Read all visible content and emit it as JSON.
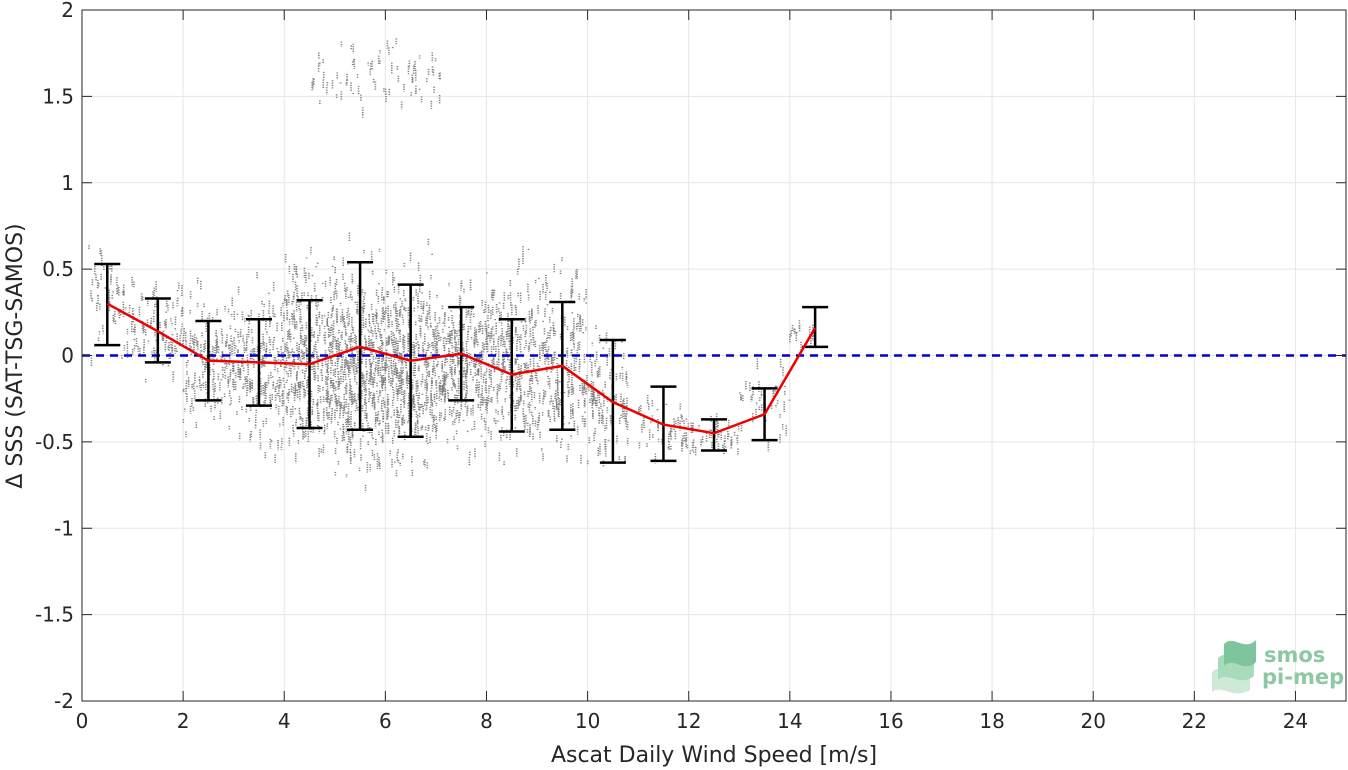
{
  "chart_data": {
    "type": "scatter",
    "xlabel": "Ascat Daily Wind Speed [m/s]",
    "ylabel": "Δ SSS (SAT-TSG-SAMOS)",
    "xlim": [
      0,
      25
    ],
    "ylim": [
      -2,
      2
    ],
    "xticks": [
      0,
      2,
      4,
      6,
      8,
      10,
      12,
      14,
      16,
      18,
      20,
      22,
      24
    ],
    "yticks": [
      -2,
      -1.5,
      -1,
      -0.5,
      0,
      0.5,
      1,
      1.5,
      2
    ],
    "ytick_labels": [
      "-2",
      "-1.5",
      "-1",
      "-0.5",
      "0",
      "0.5",
      "1",
      "1.5",
      "2"
    ],
    "grid": true,
    "zero_line": {
      "y": 0,
      "color": "#0000cc",
      "style": "dashed"
    },
    "mean_line_color": "#ee0000",
    "errorbar_color": "#000000",
    "scatter_color": "#7f7f7f",
    "bins": {
      "x": [
        0.5,
        1.5,
        2.5,
        3.5,
        4.5,
        5.5,
        6.5,
        7.5,
        8.5,
        9.5,
        10.5,
        11.5,
        12.5,
        13.5,
        14.5
      ],
      "mean": [
        0.3,
        0.14,
        -0.03,
        -0.04,
        -0.05,
        0.05,
        -0.03,
        0.01,
        -0.11,
        -0.06,
        -0.27,
        -0.4,
        -0.45,
        -0.34,
        0.16
      ],
      "lower": [
        0.06,
        -0.04,
        -0.26,
        -0.29,
        -0.42,
        -0.43,
        -0.47,
        -0.26,
        -0.44,
        -0.43,
        -0.62,
        -0.61,
        -0.55,
        -0.49,
        0.05
      ],
      "upper": [
        0.53,
        0.33,
        0.2,
        0.21,
        0.32,
        0.54,
        0.41,
        0.28,
        0.21,
        0.31,
        0.09,
        -0.18,
        -0.37,
        -0.19,
        0.28
      ]
    },
    "scatter_clusters": [
      {
        "x": [
          0.1,
          1.0
        ],
        "y": [
          -0.15,
          0.75
        ],
        "n": 60
      },
      {
        "x": [
          1.0,
          2.0
        ],
        "y": [
          -0.25,
          0.55
        ],
        "n": 90
      },
      {
        "x": [
          2.0,
          3.0
        ],
        "y": [
          -0.55,
          0.5
        ],
        "n": 150
      },
      {
        "x": [
          3.0,
          4.0
        ],
        "y": [
          -0.7,
          0.55
        ],
        "n": 200
      },
      {
        "x": [
          4.0,
          5.0
        ],
        "y": [
          -0.75,
          0.7
        ],
        "n": 320
      },
      {
        "x": [
          5.0,
          6.0
        ],
        "y": [
          -0.9,
          0.75
        ],
        "n": 420
      },
      {
        "x": [
          6.0,
          7.0
        ],
        "y": [
          -0.85,
          0.7
        ],
        "n": 380
      },
      {
        "x": [
          7.0,
          8.0
        ],
        "y": [
          -0.7,
          0.55
        ],
        "n": 300
      },
      {
        "x": [
          8.0,
          9.0
        ],
        "y": [
          -0.75,
          0.7
        ],
        "n": 260
      },
      {
        "x": [
          9.0,
          10.0
        ],
        "y": [
          -0.85,
          0.8
        ],
        "n": 200
      },
      {
        "x": [
          10.0,
          10.8
        ],
        "y": [
          -0.8,
          0.3
        ],
        "n": 110
      },
      {
        "x": [
          11.0,
          12.0
        ],
        "y": [
          -0.65,
          -0.2
        ],
        "n": 50
      },
      {
        "x": [
          12.0,
          13.0
        ],
        "y": [
          -0.65,
          -0.3
        ],
        "n": 45
      },
      {
        "x": [
          13.0,
          14.0
        ],
        "y": [
          -0.55,
          0.0
        ],
        "n": 40
      },
      {
        "x": [
          14.0,
          14.5
        ],
        "y": [
          0.0,
          0.25
        ],
        "n": 15
      },
      {
        "x": [
          4.5,
          7.1
        ],
        "y": [
          1.35,
          1.88
        ],
        "n": 80
      }
    ]
  },
  "logo": {
    "line1": "smos",
    "line2": "pi-mep"
  }
}
